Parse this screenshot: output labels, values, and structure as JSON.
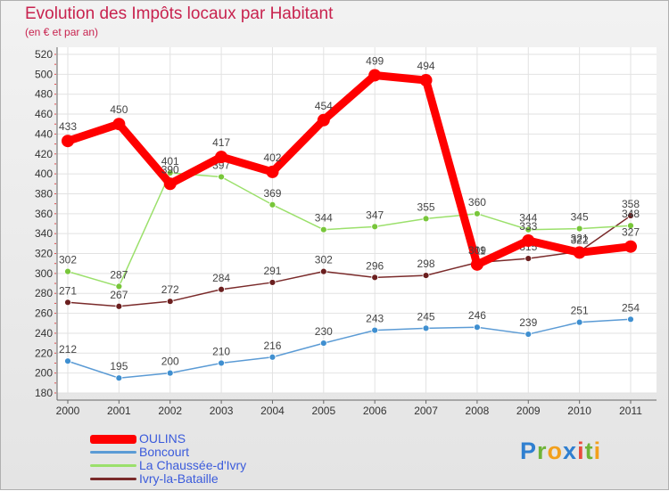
{
  "chart_data": {
    "type": "line",
    "title": "Evolution des Impôts locaux par Habitant",
    "subtitle": "(en € et par an)",
    "xlabel": "",
    "ylabel": "",
    "categories": [
      "2000",
      "2001",
      "2002",
      "2003",
      "2004",
      "2005",
      "2006",
      "2007",
      "2008",
      "2009",
      "2010",
      "2011"
    ],
    "ylim": [
      180,
      520
    ],
    "yticks": [
      180,
      200,
      220,
      240,
      260,
      280,
      300,
      320,
      340,
      360,
      380,
      400,
      420,
      440,
      460,
      480,
      500,
      520
    ],
    "grid": true,
    "legend_position": "bottom-left",
    "series": [
      {
        "name": "Boncourt",
        "color": "#5b9bd5",
        "marker": "#3f8fd0",
        "values": [
          212,
          195,
          200,
          210,
          216,
          230,
          243,
          245,
          246,
          239,
          251,
          254
        ]
      },
      {
        "name": "Ivry-la-Bataille",
        "color": "#7a2a2a",
        "marker": "#6b1f1f",
        "values": [
          271,
          267,
          272,
          284,
          291,
          302,
          296,
          298,
          311,
          315,
          322,
          358
        ]
      },
      {
        "name": "La Chaussée-d'Ivry",
        "color": "#9be06b",
        "marker": "#78c63a",
        "values": [
          302,
          287,
          401,
          397,
          369,
          344,
          347,
          355,
          360,
          344,
          345,
          348
        ]
      },
      {
        "name": "OULINS",
        "color": "#ff0000",
        "marker": "#ff0000",
        "values": [
          433,
          450,
          390,
          417,
          402,
          454,
          499,
          494,
          309,
          333,
          321,
          327
        ]
      }
    ]
  },
  "legend": {
    "items": [
      {
        "label": "OULINS",
        "color": "#ff0000"
      },
      {
        "label": "Boncourt",
        "color": "#5b9bd5"
      },
      {
        "label": "La Chaussée-d'Ivry",
        "color": "#9be06b"
      },
      {
        "label": "Ivry-la-Bataille",
        "color": "#7a2a2a"
      }
    ]
  },
  "logo": {
    "text": "Proxiti",
    "letters": [
      "P",
      "r",
      "o",
      "x",
      "i",
      "t",
      "i"
    ]
  }
}
